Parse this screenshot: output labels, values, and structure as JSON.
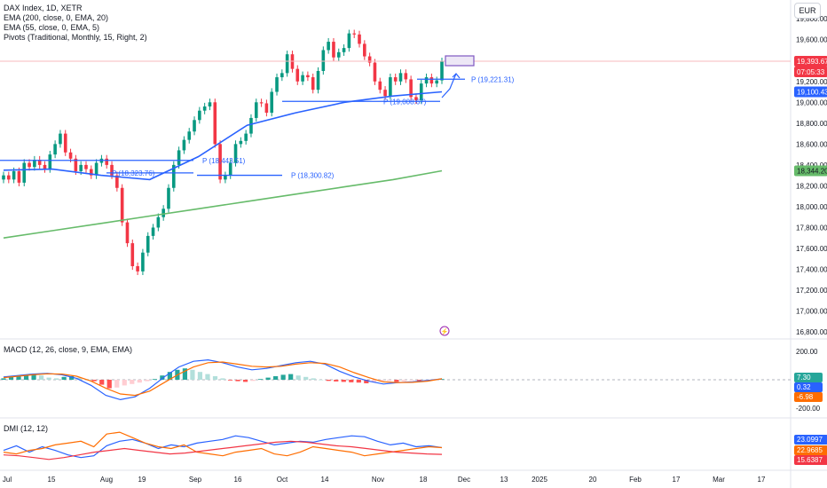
{
  "legend": {
    "title": "DAX Index, 1D, XETR",
    "ema200": "EMA (200, close, 0, EMA, 20)",
    "ema55": "EMA (55, close, 0, EMA, 5)",
    "pivots": "Pivots (Traditional, Monthly, 15, Right, 2)",
    "macd": "MACD (12, 26, close, 9, EMA, EMA)",
    "dmi": "DMI (12, 12)"
  },
  "currency": "EUR",
  "colors": {
    "up": "#089981",
    "down": "#f23645",
    "ema55": "#2962ff",
    "ema200": "#66bb6a",
    "pivot": "#2962ff",
    "macd": "#2962ff",
    "signal": "#ff6d00",
    "dmi_plus": "#2962ff",
    "dmi_minus": "#ff6d00",
    "adx": "#f23645",
    "price_line": "#f23645"
  },
  "chart_data": [
    {
      "type": "candlestick",
      "symbol": "DAX Index",
      "interval": "1D",
      "exchange": "XETR",
      "x_ticks": [
        "Jul",
        "15",
        "Aug",
        "19",
        "Sep",
        "16",
        "Oct",
        "14",
        "Nov",
        "18",
        "Dec",
        "13",
        "2025",
        "20",
        "Feb",
        "17",
        "Mar",
        "17"
      ],
      "y_ticks": [
        "19,800.00",
        "19,600.00",
        "19,400.00",
        "19,200.00",
        "19,000.00",
        "18,800.00",
        "18,600.00",
        "18,400.00",
        "18,200.00",
        "18,000.00",
        "17,800.00",
        "17,600.00",
        "17,400.00",
        "17,200.00",
        "17,000.00",
        "16,800.00"
      ],
      "ylim": [
        16750,
        19980
      ],
      "last_price": "19,393.67",
      "countdown": "07:05:33",
      "ema55_label": "19,100.43",
      "ema200_label": "18,344.20",
      "closes": [
        18300,
        18260,
        18340,
        18230,
        18420,
        18380,
        18450,
        18400,
        18360,
        18500,
        18600,
        18700,
        18520,
        18460,
        18340,
        18400,
        18360,
        18300,
        18420,
        18460,
        18400,
        18300,
        18180,
        17850,
        17650,
        17430,
        17380,
        17560,
        17720,
        17800,
        17900,
        17980,
        18180,
        18400,
        18540,
        18640,
        18720,
        18830,
        18920,
        18960,
        19000,
        18600,
        18260,
        18300,
        18420,
        18600,
        18630,
        18700,
        18850,
        19000,
        18990,
        18900,
        19100,
        19240,
        19280,
        19460,
        19320,
        19200,
        19260,
        19240,
        19120,
        19300,
        19500,
        19580,
        19430,
        19480,
        19520,
        19660,
        19650,
        19560,
        19440,
        19380,
        19200,
        19120,
        19060,
        19240,
        19200,
        19280,
        19220,
        19050,
        19020,
        19180,
        19240,
        19180,
        19210,
        19393
      ],
      "ema200": [
        17700,
        17770,
        17840,
        17910,
        17980,
        18050,
        18120,
        18190,
        18260,
        18344
      ],
      "ema55": [
        18350,
        18360,
        18300,
        18260,
        18480,
        18780,
        18900,
        19000,
        19060,
        19100
      ],
      "pivots": [
        {
          "label": "P (18,443.51)",
          "value": 18443.51
        },
        {
          "label": "P (18,323.76)",
          "value": 18323.76
        },
        {
          "label": "P (18,300.82)",
          "value": 18300.82
        },
        {
          "label": "P (19,008.67)",
          "value": 19008.67
        },
        {
          "label": "P (19,221.31)",
          "value": 19221.31
        }
      ]
    },
    {
      "type": "bar",
      "name": "MACD (12, 26, close, 9, EMA, EMA)",
      "y_ticks": [
        "200.00",
        "-200.00"
      ],
      "ylim": [
        -200,
        200
      ],
      "value_labels": [
        "7.30",
        "0.32",
        "-6.98"
      ],
      "histogram": [
        10,
        20,
        25,
        35,
        40,
        30,
        15,
        10,
        20,
        25,
        15,
        5,
        -10,
        -35,
        -60,
        -55,
        -40,
        -30,
        -20,
        -10,
        5,
        30,
        55,
        70,
        80,
        70,
        55,
        40,
        25,
        10,
        -5,
        -10,
        -15,
        -8,
        5,
        15,
        25,
        35,
        40,
        30,
        20,
        10,
        0,
        -8,
        -12,
        -15,
        -18,
        -20,
        -25,
        -18,
        -12,
        -8,
        -15,
        -10,
        -5,
        -8,
        -2,
        0,
        5
      ],
      "macd_line": [
        20,
        30,
        40,
        45,
        35,
        10,
        -40,
        -110,
        -140,
        -120,
        -60,
        20,
        90,
        130,
        140,
        120,
        90,
        70,
        80,
        100,
        120,
        130,
        110,
        60,
        20,
        -10,
        -30,
        -20,
        -15,
        -5,
        6
      ],
      "signal_line": [
        15,
        25,
        35,
        42,
        40,
        25,
        -10,
        -60,
        -100,
        -110,
        -80,
        -20,
        40,
        90,
        120,
        125,
        110,
        95,
        90,
        95,
        110,
        120,
        115,
        90,
        50,
        15,
        -15,
        -20,
        -18,
        -10,
        7
      ]
    },
    {
      "type": "line",
      "name": "DMI (12, 12)",
      "value_labels": [
        "23.0997",
        "22.9685",
        "15.6387"
      ],
      "series": [
        {
          "values": [
            20,
            25,
            18,
            24,
            20,
            15,
            12,
            14,
            25,
            30,
            32,
            28,
            22,
            26,
            24,
            28,
            30,
            32,
            36,
            34,
            30,
            26,
            28,
            30,
            29,
            32,
            34,
            36,
            35,
            30,
            26,
            28,
            24,
            25,
            23
          ]
        },
        {
          "values": [
            18,
            16,
            20,
            22,
            26,
            28,
            30,
            24,
            38,
            40,
            34,
            28,
            24,
            22,
            26,
            18,
            16,
            14,
            18,
            20,
            22,
            16,
            14,
            18,
            24,
            22,
            20,
            18,
            14,
            16,
            18,
            20,
            22,
            24,
            23
          ]
        },
        {
          "values": [
            15,
            14,
            12,
            10,
            12,
            15,
            18,
            20,
            22,
            20,
            18,
            16,
            17,
            19,
            21,
            23,
            25,
            27,
            29,
            30,
            29,
            27,
            25,
            24,
            22,
            20,
            18,
            17,
            16,
            15.6
          ]
        }
      ]
    }
  ]
}
